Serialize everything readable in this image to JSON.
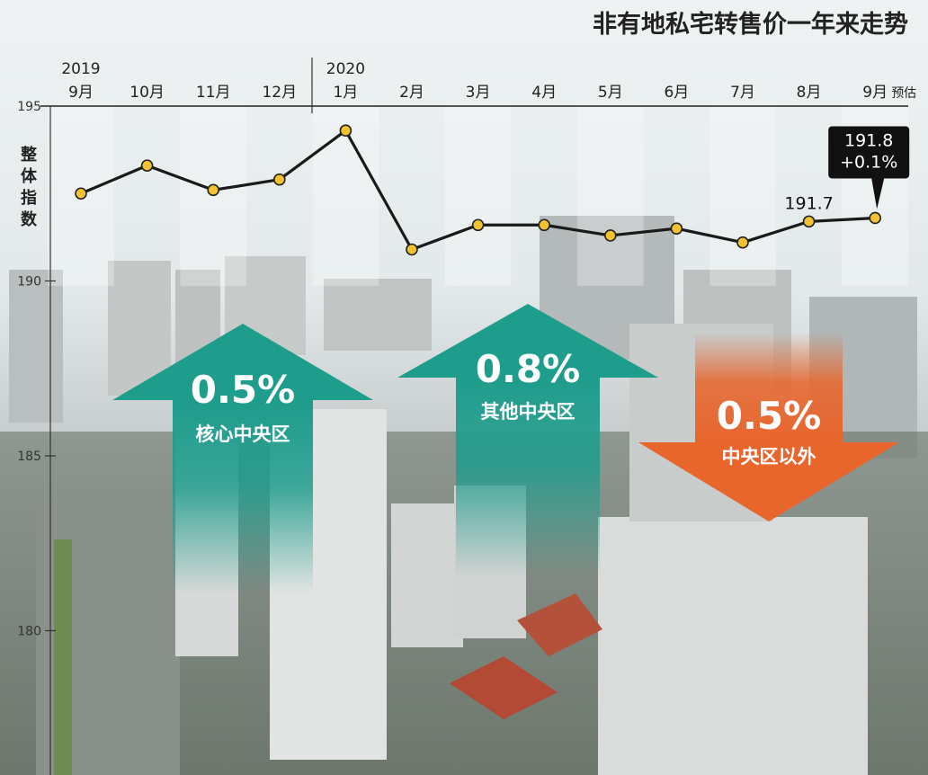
{
  "title": "非有地私宅转售价一年来走势",
  "colors": {
    "line": "#1a1a1a",
    "marker": "#f2c230",
    "up_arrow": "#1e9c8c",
    "down_arrow": "#e8652c",
    "callout_bg": "#111111"
  },
  "chart_data": {
    "type": "line",
    "years": [
      {
        "label": "2019",
        "at": "9月"
      },
      {
        "label": "2020",
        "at": "1月"
      }
    ],
    "categories": [
      "9月",
      "10月",
      "11月",
      "12月",
      "1月",
      "2月",
      "3月",
      "4月",
      "5月",
      "6月",
      "7月",
      "8月",
      "9月"
    ],
    "last_category_note": "预估",
    "values": [
      192.5,
      193.3,
      192.6,
      192.9,
      194.3,
      190.9,
      191.6,
      191.6,
      191.3,
      191.5,
      191.1,
      191.7,
      191.8
    ],
    "ylabel": "整体指数",
    "yticks": [
      195,
      190,
      185,
      180
    ],
    "ylim": [
      177,
      195
    ],
    "annotations": [
      {
        "point": "8月",
        "text": "191.7"
      },
      {
        "point": "9月",
        "lines": [
          "191.8",
          "+0.1%"
        ]
      }
    ],
    "region_changes": [
      {
        "value": "0.5%",
        "label": "核心中央区",
        "direction": "up"
      },
      {
        "value": "0.8%",
        "label": "其他中央区",
        "direction": "up"
      },
      {
        "value": "0.5%",
        "label": "中央区以外",
        "direction": "down"
      }
    ]
  }
}
